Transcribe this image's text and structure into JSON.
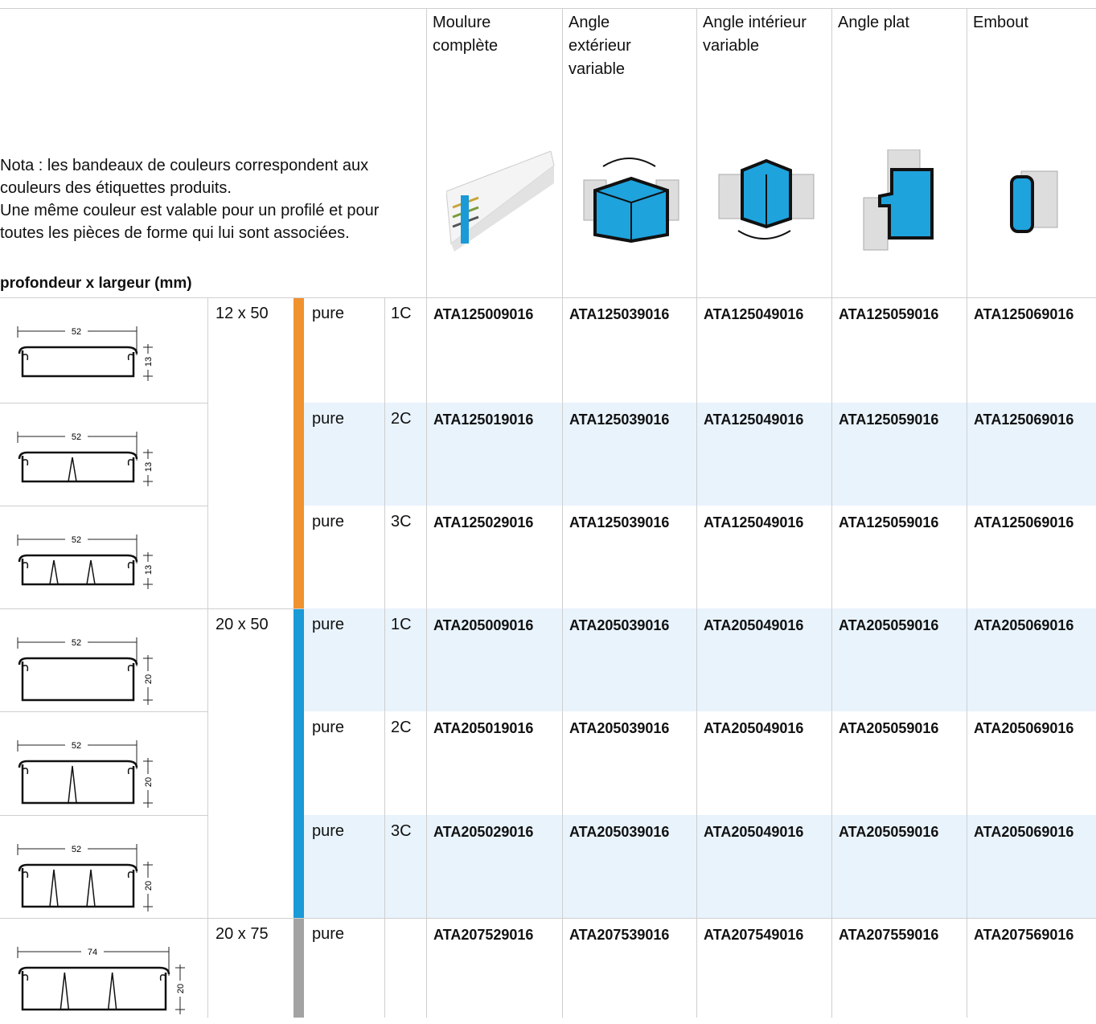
{
  "header": {
    "note": [
      "Nota : les bandeaux de couleurs correspondent aux couleurs des étiquettes produits.",
      "Une même couleur est valable pour un profilé et pour toutes les pièces de forme qui lui sont associées."
    ],
    "dimension_label": "profondeur x largeur (mm)",
    "columns": [
      "Moulure complète",
      "Angle extérieur variable",
      "Angle intérieur variable",
      "Angle plat",
      "Embout"
    ]
  },
  "groups": [
    {
      "size": "12 x 50",
      "color": "#f0922e",
      "rows": [
        {
          "profile": {
            "width": "52",
            "height": "13"
          },
          "finish": "pure",
          "compartments": "1C",
          "codes": [
            "ATA125009016",
            "ATA125039016",
            "ATA125049016",
            "ATA125059016",
            "ATA125069016"
          ]
        },
        {
          "profile": {
            "width": "52",
            "height": "13"
          },
          "finish": "pure",
          "compartments": "2C",
          "codes": [
            "ATA125019016",
            "ATA125039016",
            "ATA125049016",
            "ATA125059016",
            "ATA125069016"
          ]
        },
        {
          "profile": {
            "width": "52",
            "height": "13"
          },
          "finish": "pure",
          "compartments": "3C",
          "codes": [
            "ATA125029016",
            "ATA125039016",
            "ATA125049016",
            "ATA125059016",
            "ATA125069016"
          ]
        }
      ]
    },
    {
      "size": "20 x 50",
      "color": "#1a9ad6",
      "rows": [
        {
          "profile": {
            "width": "52",
            "height": "20"
          },
          "finish": "pure",
          "compartments": "1C",
          "codes": [
            "ATA205009016",
            "ATA205039016",
            "ATA205049016",
            "ATA205059016",
            "ATA205069016"
          ]
        },
        {
          "profile": {
            "width": "52",
            "height": "20"
          },
          "finish": "pure",
          "compartments": "2C",
          "codes": [
            "ATA205019016",
            "ATA205039016",
            "ATA205049016",
            "ATA205059016",
            "ATA205069016"
          ]
        },
        {
          "profile": {
            "width": "52",
            "height": "20"
          },
          "finish": "pure",
          "compartments": "3C",
          "codes": [
            "ATA205029016",
            "ATA205039016",
            "ATA205049016",
            "ATA205059016",
            "ATA205069016"
          ]
        }
      ]
    },
    {
      "size": "20 x 75",
      "color": "#a3a3a3",
      "rows": [
        {
          "profile": {
            "width": "74",
            "height": "20"
          },
          "finish": "pure",
          "compartments": null,
          "codes": [
            "ATA207529016",
            "ATA207539016",
            "ATA207549016",
            "ATA207559016",
            "ATA207569016"
          ]
        }
      ]
    }
  ]
}
